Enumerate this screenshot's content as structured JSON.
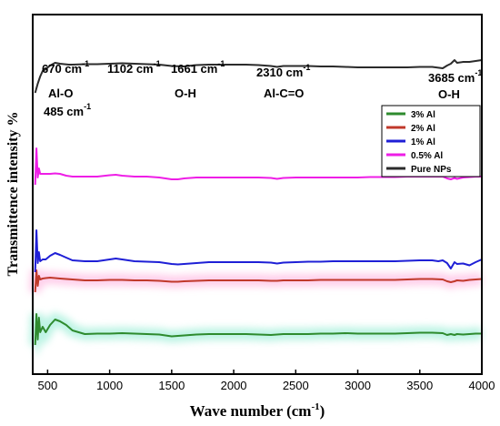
{
  "chart_data": {
    "type": "line",
    "xlabel_main": "Wave number (cm",
    "xlabel_sup": "-1",
    "xlabel_end": ")",
    "ylabel": "Transmittence intensity %",
    "xlim": [
      380,
      4000
    ],
    "x_ticks": [
      500,
      1000,
      1500,
      2000,
      2500,
      3000,
      3500,
      4000
    ],
    "y_ticks_shown": false,
    "legend_position": "right, below top annotations",
    "annotations": [
      {
        "main": "670 cm",
        "sup": "-1"
      },
      {
        "main": "Al-O",
        "sup": ""
      },
      {
        "main": "485 cm",
        "sup": "-1"
      },
      {
        "main": "1102 cm",
        "sup": "-1"
      },
      {
        "main": "1661 cm",
        "sup": "-1"
      },
      {
        "main": "O-H",
        "sup": ""
      },
      {
        "main": "2310 cm",
        "sup": "-1"
      },
      {
        "main": "Al-C=O",
        "sup": ""
      },
      {
        "main": "3685 cm",
        "sup": "-1"
      },
      {
        "main": "O-H",
        "sup": ""
      }
    ],
    "series": [
      {
        "name": "3% Al",
        "color": "#2e8b2e",
        "glow": "#a8f0dc",
        "x": [
          400,
          410,
          420,
          430,
          440,
          460,
          485,
          520,
          560,
          600,
          650,
          700,
          800,
          900,
          1000,
          1100,
          1200,
          1300,
          1400,
          1500,
          1550,
          1600,
          1700,
          1800,
          1900,
          2000,
          2100,
          2200,
          2300,
          2350,
          2400,
          2500,
          2600,
          2700,
          2800,
          2900,
          3000,
          3100,
          3200,
          3300,
          3400,
          3500,
          3600,
          3685,
          3720,
          3750,
          3780,
          3800,
          3850,
          3900,
          3950,
          4000
        ],
        "y": [
          -12,
          22,
          -6,
          18,
          2,
          8,
          2,
          10,
          16,
          14,
          10,
          4,
          0,
          0.5,
          0.5,
          1,
          0.5,
          0,
          -0.5,
          -2.5,
          -2,
          -1.5,
          -0.5,
          0,
          0,
          0,
          0,
          -0.5,
          -1,
          -0.5,
          0,
          0,
          0,
          0.5,
          0.5,
          1,
          0.5,
          0.5,
          0.5,
          0.5,
          1,
          1.5,
          1.5,
          1,
          -1,
          0,
          -1,
          0,
          -0.5,
          0,
          0.5,
          0.5
        ]
      },
      {
        "name": "2% Al",
        "color": "#c0392b",
        "glow": "#ffc0e4",
        "x": [
          400,
          410,
          420,
          430,
          440,
          460,
          485,
          520,
          560,
          600,
          700,
          800,
          900,
          1000,
          1100,
          1200,
          1300,
          1400,
          1500,
          1550,
          1600,
          1700,
          1800,
          1900,
          2000,
          2100,
          2200,
          2300,
          2350,
          2400,
          2500,
          2600,
          2700,
          2800,
          2900,
          3000,
          3100,
          3200,
          3300,
          3400,
          3500,
          3600,
          3685,
          3720,
          3750,
          3780,
          3800,
          3850,
          3900,
          3950,
          4000
        ],
        "y": [
          -12,
          12,
          -5,
          6,
          2,
          3,
          3.5,
          4,
          3.5,
          3,
          2,
          1,
          1,
          1.5,
          1.5,
          1,
          1,
          0.5,
          -0.5,
          -0.5,
          0,
          0.5,
          1,
          1,
          1,
          1,
          1,
          0.5,
          0.5,
          1,
          1,
          1,
          1.5,
          1.5,
          1.5,
          1.5,
          1.5,
          1.5,
          1.5,
          2,
          2.5,
          2.5,
          2,
          0,
          -1,
          0,
          1,
          0.5,
          1.5,
          2,
          2.5
        ]
      },
      {
        "name": "1% Al",
        "color": "#1f1fd6",
        "glow": "",
        "x": [
          400,
          410,
          420,
          430,
          440,
          460,
          485,
          520,
          560,
          600,
          650,
          700,
          800,
          900,
          1000,
          1050,
          1100,
          1200,
          1300,
          1400,
          1500,
          1550,
          1600,
          1700,
          1800,
          1900,
          2000,
          2100,
          2200,
          2300,
          2350,
          2400,
          2500,
          2600,
          2700,
          2800,
          2900,
          3000,
          3100,
          3200,
          3300,
          3400,
          3500,
          3600,
          3650,
          3685,
          3720,
          3750,
          3780,
          3800,
          3850,
          3900,
          3950,
          4000
        ],
        "y": [
          -8,
          38,
          2,
          14,
          4,
          6,
          6,
          10,
          13,
          11,
          8,
          5,
          4,
          4,
          6,
          7,
          6,
          4,
          3.5,
          3,
          1,
          0.5,
          1,
          2,
          3,
          3,
          3,
          3,
          3,
          2.5,
          1.5,
          2.5,
          3,
          3.5,
          3.5,
          4,
          4,
          4,
          4,
          4,
          4,
          4.5,
          5,
          5,
          4,
          5,
          2,
          -4,
          3,
          1,
          1.5,
          -0.5,
          3,
          6
        ]
      },
      {
        "name": "0.5% Al",
        "color": "#ee1ee6",
        "glow": "",
        "x": [
          400,
          410,
          420,
          430,
          440,
          460,
          485,
          520,
          560,
          600,
          650,
          700,
          800,
          900,
          1000,
          1050,
          1100,
          1200,
          1300,
          1400,
          1500,
          1550,
          1600,
          1700,
          1800,
          1900,
          2000,
          2100,
          2200,
          2300,
          2350,
          2400,
          2500,
          2600,
          2700,
          2800,
          2900,
          3000,
          3100,
          3200,
          3300,
          3400,
          3500,
          3600,
          3650,
          3685,
          3720,
          3750,
          3780,
          3800,
          3850,
          3900,
          3950,
          4000
        ],
        "y": [
          -4,
          36,
          4,
          14,
          8,
          8,
          8,
          8,
          8.5,
          8,
          6,
          5,
          5,
          5,
          6.5,
          7,
          6,
          5,
          5,
          4,
          2,
          2,
          3,
          4,
          4,
          4,
          4,
          4,
          4,
          3.5,
          2.5,
          3.5,
          4,
          4,
          4,
          4,
          4,
          4,
          4.5,
          4.5,
          4.5,
          5,
          5,
          5,
          5,
          5,
          3,
          2,
          3.5,
          2.5,
          4,
          4.5,
          5,
          5
        ]
      },
      {
        "name": "Pure NPs",
        "color": "#2b2b2b",
        "glow": "",
        "x": [
          400,
          420,
          440,
          460,
          485,
          520,
          560,
          600,
          670,
          700,
          800,
          900,
          1000,
          1102,
          1200,
          1300,
          1400,
          1500,
          1600,
          1661,
          1700,
          1800,
          1900,
          2000,
          2100,
          2200,
          2300,
          2350,
          2400,
          2500,
          2600,
          2700,
          2800,
          2900,
          3000,
          3100,
          3200,
          3300,
          3400,
          3500,
          3600,
          3685,
          3720,
          3750,
          3780,
          3800,
          3850,
          3900,
          3950,
          4000
        ],
        "y": [
          -12,
          -2,
          6,
          12,
          14,
          18,
          21,
          20,
          19,
          19,
          19.5,
          19.5,
          20,
          20.5,
          20,
          19.5,
          19,
          17.5,
          17,
          18,
          18.5,
          19,
          19,
          19,
          19,
          18.5,
          17.5,
          16.5,
          17.5,
          17.5,
          17.5,
          17,
          17,
          16.5,
          16,
          16,
          16,
          16,
          16,
          16.5,
          16.5,
          15,
          18,
          20,
          24,
          21,
          22,
          22,
          23,
          24
        ]
      }
    ]
  }
}
